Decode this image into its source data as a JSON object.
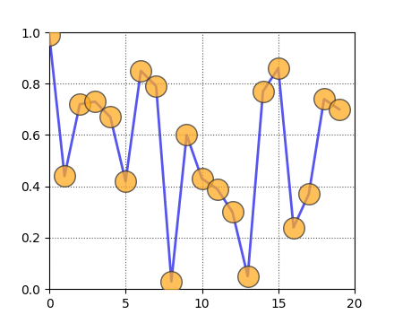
{
  "chart_data": {
    "type": "line",
    "x": [
      0,
      1,
      2,
      3,
      4,
      5,
      6,
      7,
      8,
      9,
      10,
      11,
      12,
      13,
      14,
      15,
      16,
      17,
      18,
      19
    ],
    "values": [
      0.99,
      0.44,
      0.72,
      0.73,
      0.67,
      0.42,
      0.85,
      0.79,
      0.03,
      0.6,
      0.43,
      0.39,
      0.3,
      0.05,
      0.77,
      0.86,
      0.24,
      0.37,
      0.74,
      0.7
    ],
    "color": "#4444ee",
    "marker": "o",
    "line_style": "solid",
    "xlim": [
      0,
      20
    ],
    "xticks": [
      0,
      5,
      10,
      15,
      20
    ],
    "ylim": [
      0,
      1
    ],
    "yticks": [
      {
        "value": 0,
        "label": "0.0"
      },
      {
        "value": 0.2,
        "label": "0.2"
      },
      {
        "value": 0.4,
        "label": "0.4"
      },
      {
        "value": 0.6,
        "label": "0.6"
      },
      {
        "value": 0.8,
        "label": "0.8"
      },
      {
        "value": 1,
        "label": "1.0"
      }
    ],
    "grid": true
  }
}
